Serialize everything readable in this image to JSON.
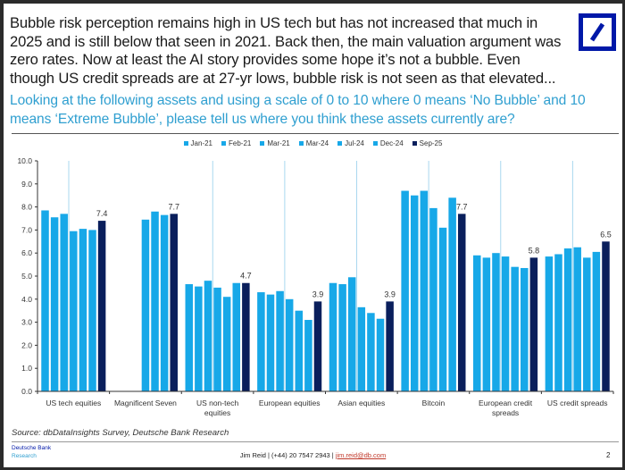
{
  "headline": "Bubble risk perception remains high in US tech but has not increased that much in 2025 and is still below that seen in 2021. Back then, the main valuation argument was zero rates. Now at least the AI story provides some hope it’s not a bubble. Even though US credit spreads are at 27-yr lows, bubble risk is not seen as that elevated...",
  "question": "Looking at the following assets and using a scale of 0 to 10 where 0 means ‘No Bubble’ and 10 means ‘Extreme Bubble’, please tell us where you think these assets currently are?",
  "logo": "deutsche-bank-logo",
  "colors": {
    "light_series": "#17a8e8",
    "latest_series": "#0a1f5c",
    "divider": "#a9d8ef",
    "question": "#2f9fd0"
  },
  "chart_data": {
    "type": "bar",
    "title": "",
    "xlabel": "",
    "ylabel": "",
    "ylim": [
      0,
      10
    ],
    "yticks": [
      "0.0",
      "1.0",
      "2.0",
      "3.0",
      "4.0",
      "5.0",
      "6.0",
      "7.0",
      "8.0",
      "9.0",
      "10.0"
    ],
    "legend_position": "top-center",
    "grid": false,
    "categories": [
      "US tech equities",
      "Magnificent Seven",
      "US non-tech equities",
      "European equities",
      "Asian equities",
      "Bitcoin",
      "European credit spreads",
      "US credit spreads"
    ],
    "category_lines": [
      [
        "US tech equities"
      ],
      [
        "Magnificent Seven"
      ],
      [
        "US non-tech",
        "equities"
      ],
      [
        "European equities"
      ],
      [
        "Asian equities"
      ],
      [
        "Bitcoin"
      ],
      [
        "European credit",
        "spreads"
      ],
      [
        "US credit spreads"
      ]
    ],
    "series": [
      {
        "name": "Jan-21",
        "color": "#17a8e8",
        "values": [
          7.85,
          null,
          4.65,
          4.3,
          4.7,
          8.7,
          5.9,
          5.85
        ]
      },
      {
        "name": "Feb-21",
        "color": "#17a8e8",
        "values": [
          7.55,
          null,
          4.55,
          4.2,
          4.65,
          8.5,
          5.8,
          5.95
        ]
      },
      {
        "name": "Mar-21",
        "color": "#17a8e8",
        "values": [
          7.7,
          null,
          4.8,
          4.35,
          4.95,
          8.7,
          6.0,
          6.2
        ]
      },
      {
        "name": "Mar-24",
        "color": "#17a8e8",
        "values": [
          6.95,
          7.45,
          4.5,
          4.0,
          3.65,
          7.95,
          5.85,
          6.25
        ]
      },
      {
        "name": "Jul-24",
        "color": "#17a8e8",
        "values": [
          7.05,
          7.8,
          4.1,
          3.5,
          3.4,
          7.1,
          5.4,
          5.8
        ]
      },
      {
        "name": "Dec-24",
        "color": "#17a8e8",
        "values": [
          7.0,
          7.65,
          4.7,
          3.1,
          3.15,
          8.4,
          5.35,
          6.05
        ]
      },
      {
        "name": "Sep-25",
        "color": "#0a1f5c",
        "values": [
          7.4,
          7.7,
          4.7,
          3.9,
          3.9,
          7.7,
          5.8,
          6.5
        ]
      }
    ],
    "data_labels": {
      "series": "Sep-25",
      "labels": [
        "7.4",
        "7.7",
        "4.7",
        "3.9",
        "3.9",
        "7.7",
        "5.8",
        "6.5"
      ]
    }
  },
  "footer": {
    "source": "Source: dbDataInsights Survey, Deutsche Bank Research",
    "brand_line1": "Deutsche Bank",
    "brand_line2": "Research",
    "contact_prefix": "Jim Reid | (+44) 20 7547 2943 | ",
    "email": "jim.reid@db.com",
    "page_number": "2"
  }
}
